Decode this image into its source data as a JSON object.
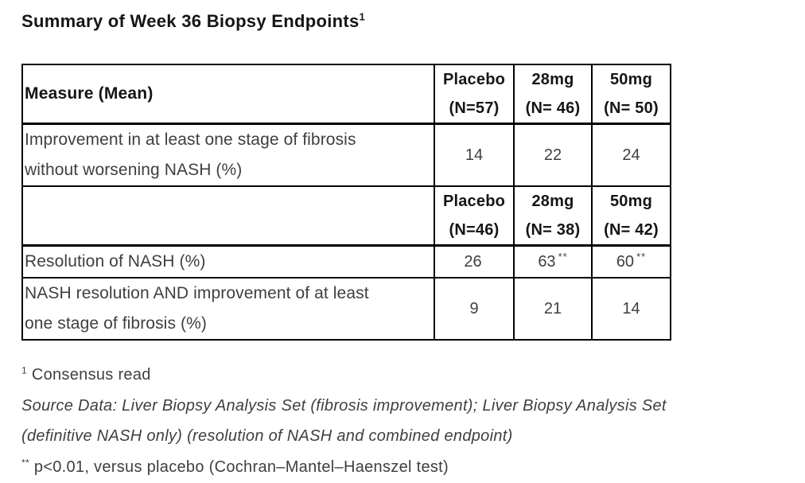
{
  "title": {
    "text": "Summary of Week 36 Biopsy Endpoints",
    "superscript": "1"
  },
  "table": {
    "header1": {
      "measure_label": "Measure (Mean)",
      "cols": [
        {
          "line1": "Placebo",
          "line2": "(N=57)"
        },
        {
          "line1": "28mg",
          "line2": "(N= 46)"
        },
        {
          "line1": "50mg",
          "line2": "(N= 50)"
        }
      ]
    },
    "row_fibrosis": {
      "label_lines": [
        "Improvement in at least one stage of fibrosis",
        "without worsening NASH (%)"
      ],
      "values": [
        "14",
        "22",
        "24"
      ]
    },
    "header2": {
      "measure_label": "",
      "cols": [
        {
          "line1": "Placebo",
          "line2": "(N=46)"
        },
        {
          "line1": "28mg",
          "line2": "(N= 38)"
        },
        {
          "line1": "50mg",
          "line2": "(N= 42)"
        }
      ]
    },
    "row_resolution": {
      "label": "Resolution of NASH (%)",
      "values": [
        "26",
        "63",
        "60"
      ],
      "flags": [
        "",
        "**",
        "**"
      ]
    },
    "row_combined": {
      "label_lines": [
        "NASH resolution AND improvement of at least",
        "one stage of fibrosis (%)"
      ],
      "values": [
        "9",
        "21",
        "14"
      ]
    }
  },
  "footnotes": {
    "consensus": {
      "marker": "1",
      "text": "Consensus read"
    },
    "source_lines": [
      "Source Data: Liver Biopsy Analysis Set (fibrosis improvement); Liver Biopsy Analysis Set",
      "(definitive NASH only) (resolution of NASH and combined endpoint)"
    ],
    "significance": {
      "marker": "**",
      "text": "p<0.01, versus placebo (Cochran–Mantel–Haenszel test)"
    }
  },
  "colors": {
    "background": "#ffffff",
    "border": "#000000",
    "heading_text": "#151514",
    "body_text": "#3f3f3e"
  }
}
